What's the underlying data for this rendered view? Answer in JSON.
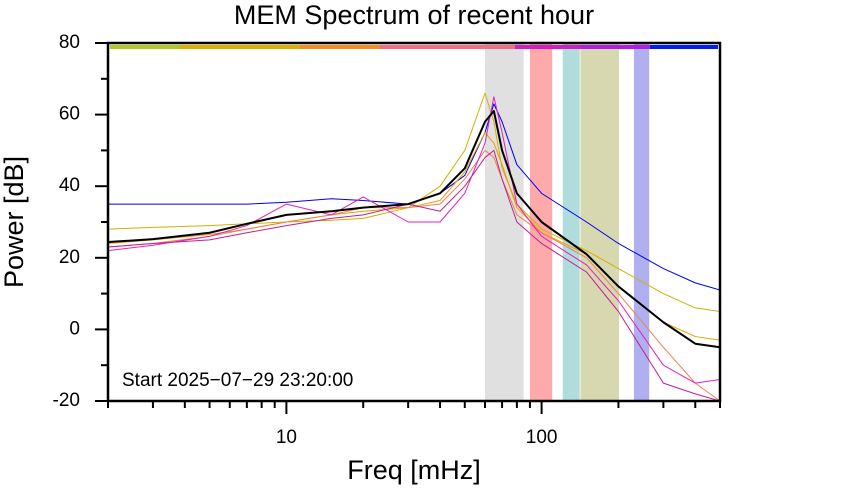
{
  "chart_data": {
    "type": "line",
    "title": "MEM Spectrum of recent hour",
    "xlabel": "Freq [mHz]",
    "ylabel": "Power [dB]",
    "annotation": "Start 2025−07−29 23:20:00",
    "xscale": "log",
    "xlim": [
      2,
      500
    ],
    "ylim": [
      -20,
      80
    ],
    "xticks": [
      10,
      100
    ],
    "xminor": [
      2,
      3,
      4,
      5,
      6,
      7,
      8,
      9,
      20,
      30,
      40,
      50,
      60,
      70,
      80,
      90,
      200,
      300,
      400,
      500
    ],
    "yticks": [
      -20,
      0,
      20,
      40,
      60,
      80
    ],
    "yminor": [
      -10,
      10,
      30,
      50,
      70
    ],
    "bands": [
      {
        "range": [
          60,
          85
        ],
        "color": "#e0e0e0"
      },
      {
        "range": [
          90,
          110
        ],
        "color": "#ffaaaa"
      },
      {
        "range": [
          121,
          141
        ],
        "color": "#b0dcdc"
      },
      {
        "range": [
          142,
          201
        ],
        "color": "#d8d8b0"
      },
      {
        "range": [
          230,
          264
        ],
        "color": "#b0b0f0"
      }
    ],
    "x": [
      2,
      3,
      5,
      7,
      10,
      15,
      20,
      30,
      40,
      50,
      60,
      65,
      70,
      80,
      100,
      150,
      200,
      300,
      400,
      500
    ],
    "series": [
      {
        "color": "#0000ee",
        "width": 1,
        "values": [
          35,
          35,
          35,
          35,
          35.5,
          36.5,
          36,
          35,
          38,
          43,
          55,
          63,
          58,
          46,
          38,
          30,
          24,
          17,
          13,
          11
        ]
      },
      {
        "color": "#d4b000",
        "width": 1,
        "values": [
          28,
          28.5,
          29,
          29.5,
          30,
          30.5,
          31,
          34,
          40,
          50,
          66,
          58,
          45,
          35,
          28,
          22,
          17,
          10,
          6,
          5
        ]
      },
      {
        "color": "#e8a000",
        "width": 1,
        "values": [
          24,
          25,
          26.5,
          28,
          30,
          32,
          33,
          34,
          36,
          44,
          55,
          52,
          46,
          34,
          27,
          21,
          12,
          2,
          -2,
          -3
        ]
      },
      {
        "color": "#f08050",
        "width": 1,
        "values": [
          23,
          24,
          26,
          28,
          30,
          32,
          34,
          34,
          35,
          42,
          50,
          48,
          42,
          32,
          27,
          20,
          10,
          -5,
          -15,
          -20
        ]
      },
      {
        "color": "#e020c0",
        "width": 1,
        "values": [
          22,
          23.5,
          26,
          29,
          35,
          32,
          37,
          30,
          30,
          38,
          52,
          65,
          55,
          35,
          26,
          18,
          8,
          -10,
          -15,
          -14
        ]
      },
      {
        "color": "#c02090",
        "width": 1,
        "values": [
          23,
          24,
          25,
          27,
          29,
          31,
          32,
          35,
          33,
          40,
          48,
          50,
          42,
          30,
          24,
          16,
          5,
          -15,
          -18,
          -20
        ]
      },
      {
        "color": "#000000",
        "width": 2,
        "values": [
          24.4,
          25.2,
          27,
          29.5,
          32,
          33,
          34,
          35,
          38,
          45,
          58,
          61,
          50,
          38,
          30,
          21,
          12,
          2,
          -4,
          -5
        ]
      }
    ]
  }
}
